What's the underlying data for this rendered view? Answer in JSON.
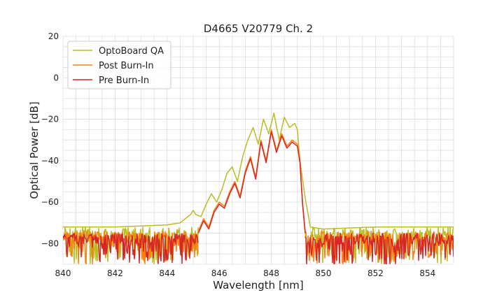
{
  "chart_data": {
    "type": "line",
    "title": "D4665 V20779 Ch. 2",
    "xlabel": "Wavelength [nm]",
    "ylabel": "Optical Power [dB]",
    "xlim": [
      840,
      855
    ],
    "ylim": [
      -90,
      20
    ],
    "xticks": [
      840,
      842,
      844,
      846,
      848,
      850,
      852,
      854
    ],
    "yticks": [
      20,
      0,
      -20,
      -40,
      -60,
      -80
    ],
    "minor_xtick_step": 0.5,
    "minor_ytick_step": 5,
    "grid": true,
    "legend_position": "top-left",
    "noise": {
      "left_range": [
        840,
        845.2
      ],
      "right_range": [
        849.3,
        855
      ],
      "floor_top": -75,
      "floor_bottom": -90
    },
    "series": [
      {
        "name": "OptoBoard QA",
        "color": "#bcbd22",
        "x": [
          840,
          842,
          844,
          844.5,
          844.9,
          845.0,
          845.1,
          845.3,
          845.5,
          845.7,
          845.9,
          846.1,
          846.3,
          846.5,
          846.7,
          846.9,
          847.1,
          847.3,
          847.5,
          847.7,
          847.9,
          848.1,
          848.3,
          848.5,
          848.7,
          848.9,
          849.0,
          849.1,
          849.3,
          849.5,
          850,
          852,
          855
        ],
        "values": [
          -72,
          -72,
          -71,
          -70,
          -66,
          -64,
          -66,
          -67,
          -61,
          -56,
          -60,
          -54,
          -46,
          -43,
          -50,
          -38,
          -30,
          -24,
          -32,
          -20,
          -27,
          -17,
          -30,
          -19,
          -24,
          -22,
          -25,
          -40,
          -58,
          -72,
          -73,
          -72,
          -72
        ]
      },
      {
        "name": "Post Burn-In",
        "color": "#ff7f0e",
        "x": [
          845.2,
          845.4,
          845.6,
          845.8,
          846.0,
          846.2,
          846.4,
          846.6,
          846.8,
          847.0,
          847.2,
          847.4,
          847.6,
          847.8,
          848.0,
          848.2,
          848.4,
          848.6,
          848.8,
          849.0,
          849.1,
          849.2,
          849.3
        ],
        "values": [
          -74,
          -68,
          -72,
          -64,
          -60,
          -62,
          -55,
          -50,
          -57,
          -45,
          -38,
          -48,
          -30,
          -40,
          -25,
          -35,
          -27,
          -33,
          -30,
          -32,
          -40,
          -60,
          -74
        ]
      },
      {
        "name": "Pre Burn-In",
        "color": "#d62728",
        "x": [
          845.2,
          845.4,
          845.6,
          845.8,
          846.0,
          846.2,
          846.4,
          846.6,
          846.8,
          847.0,
          847.2,
          847.4,
          847.6,
          847.8,
          848.0,
          848.2,
          848.4,
          848.6,
          848.8,
          849.0,
          849.1,
          849.2,
          849.3
        ],
        "values": [
          -75,
          -69,
          -73,
          -65,
          -61,
          -63,
          -56,
          -51,
          -58,
          -46,
          -39,
          -49,
          -31,
          -41,
          -26,
          -36,
          -28,
          -34,
          -31,
          -33,
          -41,
          -61,
          -75
        ]
      }
    ]
  }
}
